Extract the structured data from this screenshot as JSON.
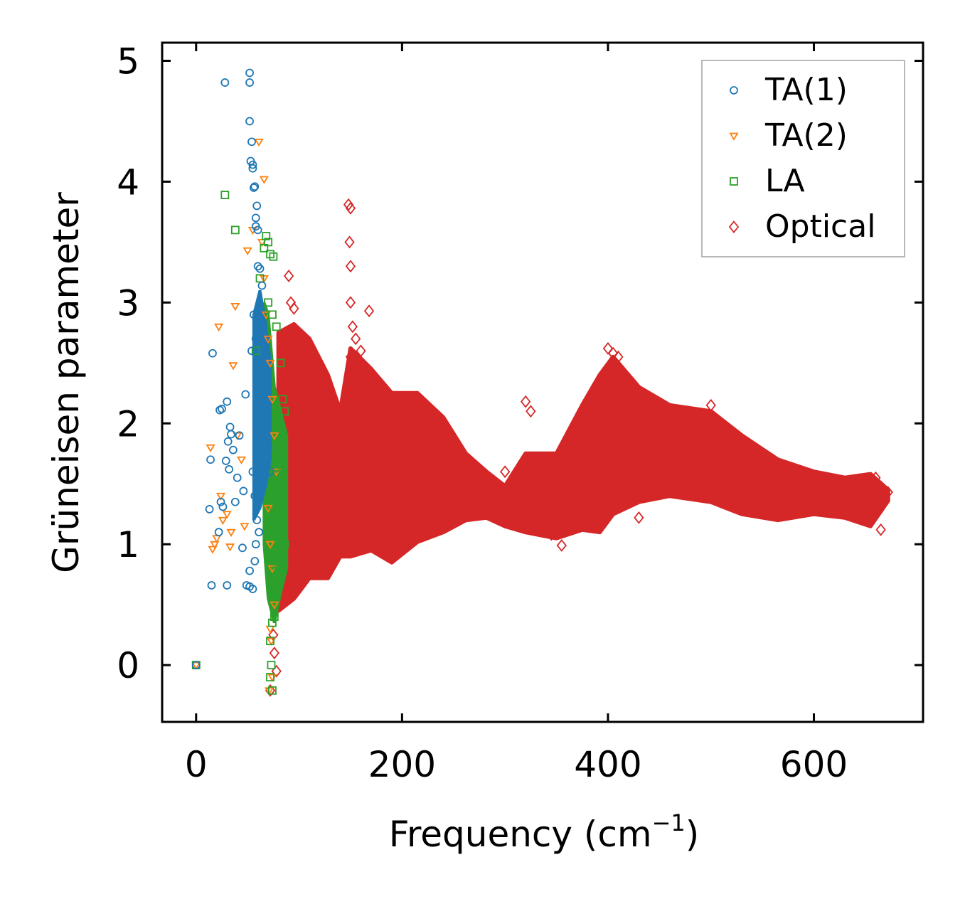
{
  "chart_data": {
    "type": "scatter",
    "title": "",
    "xlabel": "Frequency (cm",
    "xlabel_sup": "−1",
    "xlabel_close": ")",
    "ylabel": "Grüneisen parameter",
    "xlim": [
      -33,
      706
    ],
    "ylim": [
      -0.47,
      5.15
    ],
    "x_ticks": [
      0,
      200,
      400,
      600
    ],
    "x_tick_labels": [
      "0",
      "200",
      "400",
      "600"
    ],
    "y_ticks": [
      0,
      1,
      2,
      3,
      4,
      5
    ],
    "y_tick_labels": [
      "0",
      "1",
      "2",
      "3",
      "4",
      "5"
    ],
    "grid": false,
    "legend_position": "top-right",
    "series": [
      {
        "name": "TA(1)",
        "marker": "circle",
        "color": "#1f77b4",
        "points": [
          [
            0,
            0
          ],
          [
            13,
            1.29
          ],
          [
            14,
            1.7
          ],
          [
            15,
            0.66
          ],
          [
            16,
            2.58
          ],
          [
            22,
            1.1
          ],
          [
            23,
            2.11
          ],
          [
            24,
            1.35
          ],
          [
            25,
            2.12
          ],
          [
            26,
            1.31
          ],
          [
            28,
            4.82
          ],
          [
            29,
            1.69
          ],
          [
            30,
            2.18
          ],
          [
            30,
            0.66
          ],
          [
            31,
            1.85
          ],
          [
            32,
            1.62
          ],
          [
            33,
            1.97
          ],
          [
            34,
            1.91
          ],
          [
            36,
            1.78
          ],
          [
            38,
            1.35
          ],
          [
            40,
            1.55
          ],
          [
            42,
            1.9
          ],
          [
            45,
            0.97
          ],
          [
            46,
            1.44
          ],
          [
            48,
            2.24
          ],
          [
            49,
            0.66
          ],
          [
            52,
            4.9
          ],
          [
            52,
            4.82
          ],
          [
            52,
            4.5
          ],
          [
            53,
            4.17
          ],
          [
            54,
            4.33
          ],
          [
            55,
            4.14
          ],
          [
            55,
            4.11
          ],
          [
            56,
            3.95
          ],
          [
            57,
            3.96
          ],
          [
            58,
            3.7
          ],
          [
            58,
            3.63
          ],
          [
            59,
            3.8
          ],
          [
            60,
            3.6
          ],
          [
            60,
            3.3
          ],
          [
            62,
            3.28
          ],
          [
            64,
            3.14
          ],
          [
            52,
            0.78
          ],
          [
            52,
            0.65
          ],
          [
            55,
            0.63
          ],
          [
            57,
            0.86
          ],
          [
            58,
            1.0
          ],
          [
            54,
            2.6
          ],
          [
            56,
            2.9
          ],
          [
            58,
            2.7
          ],
          [
            60,
            2.5
          ],
          [
            62,
            2.4
          ],
          [
            64,
            2.3
          ],
          [
            66,
            2.2
          ],
          [
            55,
            1.6
          ],
          [
            57,
            1.4
          ],
          [
            59,
            1.2
          ],
          [
            61,
            1.1
          ],
          [
            63,
            1.7
          ],
          [
            65,
            1.9
          ],
          [
            67,
            2.0
          ],
          [
            69,
            2.1
          ],
          [
            70,
            1.8
          ],
          [
            72,
            1.6
          ]
        ]
      },
      {
        "name": "TA(2)",
        "marker": "triangle-down",
        "color": "#ff7f0e",
        "points": [
          [
            0,
            0
          ],
          [
            14,
            1.8
          ],
          [
            16,
            0.96
          ],
          [
            18,
            1.0
          ],
          [
            20,
            1.05
          ],
          [
            22,
            2.8
          ],
          [
            24,
            1.4
          ],
          [
            26,
            1.2
          ],
          [
            30,
            1.25
          ],
          [
            33,
            0.98
          ],
          [
            34,
            1.1
          ],
          [
            36,
            2.48
          ],
          [
            38,
            2.97
          ],
          [
            40,
            1.9
          ],
          [
            44,
            1.7
          ],
          [
            47,
            1.15
          ],
          [
            50,
            3.43
          ],
          [
            55,
            3.6
          ],
          [
            61,
            4.33
          ],
          [
            66,
            4.02
          ],
          [
            64,
            3.5
          ],
          [
            66,
            3.2
          ],
          [
            68,
            2.9
          ],
          [
            70,
            2.7
          ],
          [
            72,
            2.5
          ],
          [
            74,
            2.2
          ],
          [
            76,
            1.9
          ],
          [
            78,
            1.6
          ],
          [
            70,
            1.3
          ],
          [
            72,
            1.0
          ],
          [
            74,
            0.8
          ],
          [
            76,
            0.5
          ],
          [
            72,
            0.3
          ],
          [
            73,
            0.2
          ],
          [
            74,
            -0.1
          ],
          [
            71,
            -0.21
          ]
        ]
      },
      {
        "name": "LA",
        "marker": "square",
        "color": "#2ca02c",
        "points": [
          [
            0,
            0
          ],
          [
            28,
            3.89
          ],
          [
            38,
            3.6
          ],
          [
            58,
            2.6
          ],
          [
            62,
            3.2
          ],
          [
            66,
            3.45
          ],
          [
            68,
            3.55
          ],
          [
            70,
            3.5
          ],
          [
            72,
            3.4
          ],
          [
            75,
            3.38
          ],
          [
            70,
            3.0
          ],
          [
            74,
            2.9
          ],
          [
            78,
            2.8
          ],
          [
            82,
            2.5
          ],
          [
            84,
            2.2
          ],
          [
            86,
            2.1
          ],
          [
            80,
            1.8
          ],
          [
            82,
            1.5
          ],
          [
            84,
            1.2
          ],
          [
            86,
            1.0
          ],
          [
            80,
            0.8
          ],
          [
            78,
            0.6
          ],
          [
            76,
            0.4
          ],
          [
            74,
            0.35
          ],
          [
            72,
            0.2
          ],
          [
            73,
            0.0
          ],
          [
            72,
            -0.1
          ],
          [
            74,
            -0.21
          ],
          [
            80,
            0.7
          ],
          [
            84,
            1.6
          ]
        ]
      },
      {
        "name": "Optical",
        "marker": "diamond",
        "color": "#d62728",
        "points": [
          [
            148,
            3.81
          ],
          [
            150,
            3.78
          ],
          [
            149,
            3.5
          ],
          [
            150,
            3.3
          ],
          [
            150,
            3.0
          ],
          [
            152,
            2.8
          ],
          [
            155,
            2.7
          ],
          [
            150,
            2.55
          ],
          [
            160,
            2.6
          ],
          [
            168,
            2.93
          ],
          [
            90,
            3.22
          ],
          [
            92,
            3.0
          ],
          [
            95,
            2.95
          ],
          [
            300,
            1.6
          ],
          [
            320,
            2.18
          ],
          [
            325,
            2.1
          ],
          [
            345,
            1.08
          ],
          [
            355,
            0.99
          ],
          [
            430,
            1.22
          ],
          [
            76,
            0.1
          ],
          [
            75,
            0.25
          ],
          [
            78,
            -0.05
          ],
          [
            72,
            -0.21
          ],
          [
            400,
            2.62
          ],
          [
            405,
            2.58
          ],
          [
            410,
            2.55
          ],
          [
            430,
            2.2
          ],
          [
            450,
            1.7
          ],
          [
            470,
            1.55
          ],
          [
            500,
            2.15
          ],
          [
            520,
            1.9
          ],
          [
            560,
            1.7
          ],
          [
            600,
            1.5
          ],
          [
            630,
            1.45
          ],
          [
            650,
            1.4
          ],
          [
            660,
            1.55
          ],
          [
            665,
            1.12
          ],
          [
            672,
            1.43
          ]
        ]
      }
    ]
  }
}
